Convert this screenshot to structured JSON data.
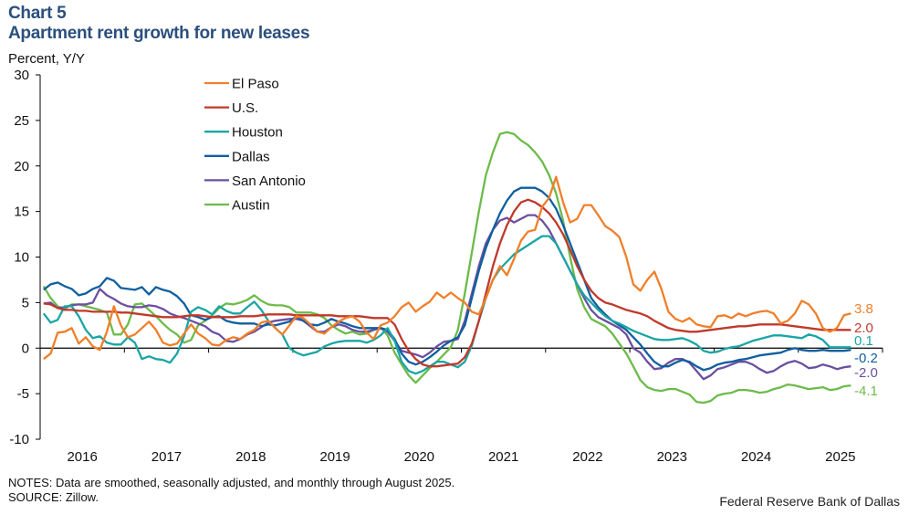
{
  "header": {
    "chart_number": "Chart 5",
    "title": "Apartment rent growth for new leases"
  },
  "footer": {
    "notes": "NOTES: Data are smoothed, seasonally adjusted, and monthly through August 2025.",
    "source": "SOURCE: Zillow.",
    "credit": "Federal Reserve Bank of Dallas"
  },
  "chart_data": {
    "type": "line",
    "title": "Apartment rent growth for new leases",
    "ylabel": "Percent, Y/Y",
    "xlabel": "",
    "ylim": [
      -10,
      30
    ],
    "yticks": [
      30,
      25,
      20,
      15,
      10,
      5,
      0,
      -5,
      -10
    ],
    "xticks": [
      "2016",
      "2017",
      "2018",
      "2019",
      "2020",
      "2021",
      "2022",
      "2023",
      "2024",
      "2025"
    ],
    "x_start": "2016-01",
    "x_end": "2025-08",
    "frequency": "monthly",
    "grid": false,
    "legend": "top-left",
    "series": [
      {
        "name": "El Paso",
        "color": "#f07f2a",
        "end_label": "3.8",
        "values": [
          -1.2,
          -0.6,
          1.7,
          1.8,
          2.2,
          0.5,
          1.2,
          0.2,
          -0.2,
          1.8,
          4.6,
          2.5,
          1.2,
          1.5,
          2.2,
          2.9,
          2.0,
          0.6,
          0.3,
          0.5,
          1.6,
          2.6,
          1.6,
          1.1,
          0.4,
          0.3,
          0.9,
          1.2,
          1.0,
          1.6,
          2.0,
          2.8,
          3.0,
          2.2,
          1.5,
          2.5,
          3.5,
          3.3,
          2.6,
          1.8,
          1.6,
          2.3,
          2.9,
          3.3,
          3.5,
          2.9,
          1.7,
          1.0,
          2.5,
          2.8,
          3.5,
          4.5,
          5.0,
          4.0,
          4.6,
          5.1,
          6.1,
          5.5,
          6.1,
          5.5,
          5.0,
          4.0,
          3.7,
          5.5,
          7.5,
          9.0,
          8.0,
          9.8,
          11.8,
          12.8,
          13.0,
          15.5,
          16.5,
          18.8,
          16.0,
          13.8,
          14.2,
          15.7,
          15.7,
          14.6,
          13.4,
          12.9,
          12.2,
          10.0,
          7.0,
          6.3,
          7.5,
          8.4,
          6.5,
          4.0,
          3.2,
          2.9,
          3.3,
          2.6,
          2.4,
          2.3,
          3.5,
          3.6,
          3.3,
          3.8,
          3.5,
          3.8,
          4.0,
          4.1,
          3.8,
          2.7,
          3.0,
          3.8,
          5.2,
          4.8,
          3.8,
          2.2,
          1.8,
          2.2,
          3.6,
          3.8
        ]
      },
      {
        "name": "U.S.",
        "color": "#c0392b",
        "end_label": "2.0",
        "values": [
          4.9,
          4.8,
          4.4,
          4.2,
          4.2,
          4.1,
          4.1,
          4.0,
          4.0,
          4.0,
          4.0,
          3.9,
          3.9,
          3.8,
          3.7,
          3.6,
          3.5,
          3.4,
          3.4,
          3.4,
          3.5,
          3.6,
          3.6,
          3.5,
          3.4,
          3.4,
          3.4,
          3.4,
          3.5,
          3.5,
          3.5,
          3.6,
          3.7,
          3.7,
          3.7,
          3.7,
          3.6,
          3.6,
          3.6,
          3.6,
          3.6,
          3.6,
          3.5,
          3.5,
          3.5,
          3.5,
          3.4,
          3.3,
          3.3,
          3.3,
          2.6,
          1.0,
          -0.3,
          -1.2,
          -1.8,
          -2.0,
          -2.0,
          -1.9,
          -1.8,
          -1.7,
          -1.0,
          0.5,
          3.0,
          6.0,
          9.0,
          11.5,
          13.5,
          15.0,
          16.0,
          16.3,
          16.0,
          15.5,
          14.8,
          13.8,
          12.5,
          10.8,
          9.0,
          7.5,
          6.3,
          5.5,
          5.0,
          4.8,
          4.5,
          4.2,
          4.0,
          3.8,
          3.5,
          3.0,
          2.6,
          2.2,
          2.0,
          1.9,
          1.8,
          1.8,
          1.9,
          2.0,
          2.1,
          2.2,
          2.3,
          2.4,
          2.4,
          2.5,
          2.6,
          2.6,
          2.6,
          2.6,
          2.5,
          2.4,
          2.3,
          2.2,
          2.1,
          2.0,
          2.0,
          2.0,
          2.0,
          2.0
        ]
      },
      {
        "name": "Houston",
        "color": "#1aa5a5",
        "end_label": "0.1",
        "values": [
          3.8,
          2.8,
          3.1,
          4.6,
          4.6,
          3.5,
          2.0,
          1.1,
          1.3,
          0.6,
          0.4,
          0.4,
          1.2,
          0.6,
          -1.2,
          -0.9,
          -1.2,
          -1.3,
          -1.6,
          -0.6,
          1.3,
          4.0,
          4.5,
          4.2,
          3.7,
          4.6,
          4.1,
          3.8,
          3.8,
          4.5,
          5.1,
          4.2,
          3.0,
          2.2,
          1.5,
          0.0,
          -0.5,
          -0.8,
          -0.6,
          -0.4,
          0.2,
          0.5,
          0.7,
          0.8,
          0.8,
          0.8,
          0.6,
          0.9,
          1.4,
          2.2,
          0.8,
          -1.5,
          -2.5,
          -2.8,
          -2.5,
          -2.0,
          -1.5,
          -1.5,
          -1.8,
          -2.1,
          -1.5,
          0.3,
          3.0,
          5.5,
          7.5,
          8.7,
          9.5,
          10.3,
          10.8,
          11.3,
          11.8,
          12.3,
          12.3,
          11.5,
          10.0,
          8.5,
          7.0,
          5.8,
          5.0,
          4.2,
          3.5,
          3.0,
          2.7,
          2.3,
          1.9,
          1.6,
          1.3,
          1.0,
          0.9,
          0.9,
          1.0,
          1.1,
          0.8,
          0.4,
          -0.3,
          -0.5,
          -0.4,
          -0.1,
          0.1,
          0.2,
          0.5,
          0.8,
          1.0,
          1.2,
          1.4,
          1.4,
          1.3,
          1.2,
          1.1,
          1.5,
          1.3,
          0.9,
          0.1,
          0.1,
          0.1,
          0.1
        ]
      },
      {
        "name": "Dallas",
        "color": "#0f5f9f",
        "end_label": "-0.2",
        "values": [
          6.4,
          7.0,
          7.2,
          6.8,
          6.5,
          5.8,
          6.0,
          6.5,
          6.8,
          7.7,
          7.4,
          6.6,
          6.5,
          6.4,
          6.7,
          5.9,
          6.7,
          6.4,
          6.2,
          5.7,
          4.9,
          3.6,
          3.4,
          3.1,
          3.4,
          3.5,
          3.0,
          2.8,
          2.7,
          2.7,
          2.7,
          2.4,
          2.6,
          2.5,
          2.7,
          2.9,
          3.5,
          3.0,
          2.6,
          2.5,
          2.8,
          3.2,
          2.9,
          2.7,
          2.4,
          2.2,
          2.2,
          2.2,
          2.2,
          2.0,
          1.0,
          -0.6,
          -1.5,
          -1.8,
          -1.5,
          -1.0,
          -0.4,
          0.3,
          0.8,
          1.2,
          2.5,
          5.5,
          8.5,
          11.0,
          13.0,
          14.8,
          16.2,
          17.2,
          17.6,
          17.6,
          17.6,
          17.2,
          16.5,
          15.3,
          13.5,
          11.5,
          9.5,
          7.5,
          5.5,
          4.5,
          3.7,
          3.0,
          2.5,
          2.0,
          1.2,
          0.4,
          -0.6,
          -1.5,
          -2.0,
          -2.0,
          -1.6,
          -1.3,
          -1.5,
          -2.0,
          -2.4,
          -2.2,
          -1.8,
          -1.6,
          -1.5,
          -1.3,
          -1.2,
          -1.0,
          -0.8,
          -0.7,
          -0.6,
          -0.5,
          -0.2,
          0.0,
          -0.2,
          -0.3,
          -0.3,
          -0.2,
          -0.3,
          -0.3,
          -0.3,
          -0.2
        ]
      },
      {
        "name": "San Antonio",
        "color": "#6b4fa0",
        "end_label": "-2.0",
        "values": [
          4.9,
          5.0,
          4.4,
          4.5,
          4.7,
          4.8,
          4.8,
          5.0,
          6.5,
          5.8,
          5.4,
          4.9,
          4.6,
          4.5,
          4.5,
          4.7,
          4.6,
          4.3,
          3.8,
          3.5,
          3.3,
          3.0,
          2.7,
          2.4,
          1.8,
          1.5,
          0.8,
          0.7,
          1.0,
          1.5,
          1.8,
          2.3,
          2.8,
          3.0,
          3.1,
          3.2,
          3.2,
          3.0,
          2.4,
          1.8,
          1.8,
          2.3,
          2.6,
          2.4,
          2.0,
          1.8,
          1.8,
          2.0,
          2.2,
          1.8,
          0.8,
          -0.3,
          -0.5,
          -0.7,
          -1.0,
          -0.5,
          0.2,
          0.7,
          0.8,
          1.0,
          3.0,
          6.0,
          9.0,
          11.5,
          13.0,
          14.0,
          14.3,
          13.8,
          14.2,
          14.6,
          14.6,
          14.0,
          13.0,
          11.5,
          10.0,
          8.5,
          7.0,
          5.5,
          4.2,
          3.4,
          3.0,
          2.6,
          2.2,
          1.5,
          0.0,
          -0.5,
          -1.5,
          -2.3,
          -2.2,
          -1.6,
          -1.2,
          -1.2,
          -1.6,
          -2.5,
          -3.4,
          -3.0,
          -2.3,
          -2.1,
          -1.8,
          -1.5,
          -1.5,
          -1.8,
          -2.3,
          -2.7,
          -2.5,
          -2.0,
          -1.6,
          -1.4,
          -1.7,
          -2.2,
          -2.1,
          -1.8,
          -2.0,
          -2.3,
          -2.1,
          -2.0
        ]
      },
      {
        "name": "Austin",
        "color": "#6cbb4a",
        "end_label": "-4.1",
        "values": [
          6.8,
          5.5,
          4.6,
          4.3,
          4.8,
          4.8,
          4.6,
          4.4,
          4.2,
          3.9,
          1.5,
          1.5,
          2.6,
          4.8,
          4.9,
          4.2,
          3.5,
          2.7,
          2.0,
          1.5,
          0.6,
          0.9,
          2.5,
          3.0,
          3.6,
          4.4,
          4.9,
          4.8,
          5.0,
          5.3,
          5.8,
          5.2,
          4.8,
          4.7,
          4.7,
          4.5,
          3.9,
          3.9,
          3.9,
          3.7,
          3.3,
          2.5,
          2.0,
          1.6,
          1.8,
          1.5,
          1.6,
          2.0,
          2.3,
          1.4,
          -0.5,
          -1.8,
          -3.0,
          -3.8,
          -3.0,
          -2.2,
          -1.5,
          -0.7,
          0.1,
          2.0,
          6.0,
          10.5,
          15.0,
          19.0,
          21.5,
          23.5,
          23.7,
          23.5,
          22.8,
          22.3,
          21.5,
          20.5,
          19.0,
          17.0,
          14.0,
          10.0,
          6.5,
          4.5,
          3.2,
          2.8,
          2.4,
          1.6,
          0.5,
          -0.6,
          -2.0,
          -3.5,
          -4.3,
          -4.6,
          -4.7,
          -4.5,
          -4.5,
          -4.8,
          -5.1,
          -5.9,
          -6.0,
          -5.8,
          -5.2,
          -5.0,
          -4.9,
          -4.6,
          -4.6,
          -4.7,
          -4.9,
          -4.8,
          -4.5,
          -4.3,
          -4.0,
          -4.1,
          -4.3,
          -4.5,
          -4.4,
          -4.3,
          -4.6,
          -4.5,
          -4.2,
          -4.1
        ]
      }
    ]
  }
}
